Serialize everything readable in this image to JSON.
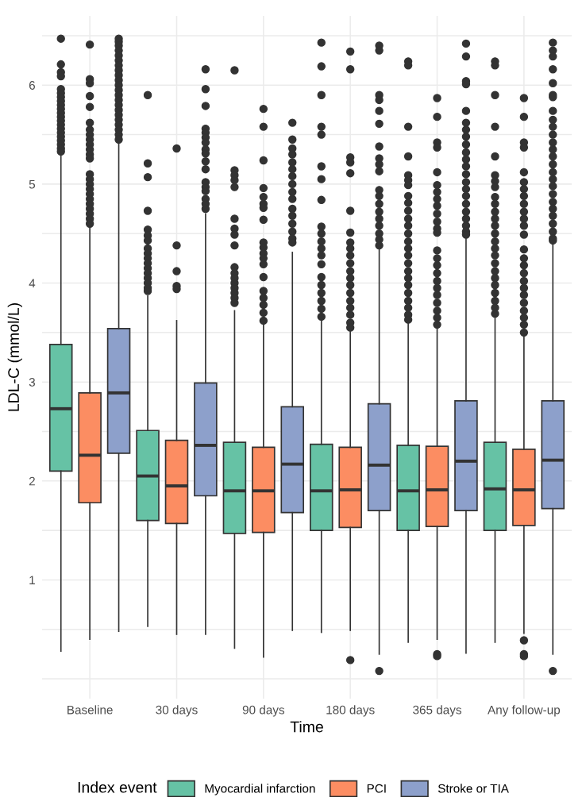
{
  "chart_data": {
    "type": "box",
    "xlabel": "Time",
    "ylabel": "LDL-C (mmol/L)",
    "legend_title": "Index event",
    "legend": "bottom",
    "grid": true,
    "categories": [
      "Baseline",
      "30 days",
      "90 days",
      "180 days",
      "365 days",
      "Any follow-up"
    ],
    "ylim": [
      -0.2,
      6.7
    ],
    "yticks": [
      {
        "value": 0,
        "label": null
      },
      {
        "value": 0.5,
        "label": null
      },
      1,
      {
        "value": 1.5,
        "label": null
      },
      2,
      {
        "value": 2.5,
        "label": null
      },
      3,
      {
        "value": 3.5,
        "label": null
      },
      4,
      {
        "value": 4.5,
        "label": null
      },
      5,
      {
        "value": 5.5,
        "label": null
      },
      6,
      {
        "value": 6.5,
        "label": null
      }
    ],
    "series": [
      {
        "name": "Myocardial infarction",
        "color": "#66c2a5",
        "boxes": [
          {
            "low": 0.28,
            "q1": 2.1,
            "median": 2.73,
            "q3": 3.38,
            "high": 5.29,
            "outliers": [
              6.47,
              6.21,
              6.13,
              6.09,
              5.96,
              5.92,
              5.88,
              5.84,
              5.8,
              5.76,
              5.72,
              5.68,
              5.64,
              5.6,
              5.56,
              5.52,
              5.48,
              5.44,
              5.4,
              5.36,
              5.33
            ]
          },
          {
            "low": 0.53,
            "q1": 1.6,
            "median": 2.05,
            "q3": 2.51,
            "high": 3.87,
            "outliers": [
              5.9,
              5.21,
              5.07,
              4.73,
              4.54,
              4.48,
              4.43,
              4.35,
              4.3,
              4.25,
              4.2,
              4.15,
              4.1,
              4.05,
              4.0,
              3.95,
              3.92
            ]
          },
          {
            "low": 0.31,
            "q1": 1.47,
            "median": 1.9,
            "q3": 2.39,
            "high": 3.72,
            "outliers": [
              6.15,
              5.14,
              5.09,
              5.04,
              4.97,
              4.65,
              4.55,
              4.49,
              4.38,
              4.16,
              4.1,
              4.05,
              4.0,
              3.95,
              3.9,
              3.85,
              3.8
            ]
          },
          {
            "low": 0.47,
            "q1": 1.5,
            "median": 1.9,
            "q3": 2.37,
            "high": 3.64,
            "outliers": [
              6.43,
              6.19,
              5.9,
              5.58,
              5.5,
              5.18,
              5.05,
              4.84,
              4.57,
              4.5,
              4.42,
              4.35,
              4.28,
              4.19,
              4.06,
              3.98,
              3.9,
              3.82,
              3.74,
              3.66
            ]
          },
          {
            "low": 0.37,
            "q1": 1.5,
            "median": 1.9,
            "q3": 2.36,
            "high": 3.62,
            "outliers": [
              6.24,
              6.2,
              5.58,
              5.28,
              5.09,
              5.04,
              4.99,
              4.88,
              4.81,
              4.73,
              4.65,
              4.58,
              4.5,
              4.42,
              4.35,
              4.28,
              4.2,
              4.12,
              4.05,
              3.98,
              3.9,
              3.82,
              3.75,
              3.68,
              3.63
            ]
          },
          {
            "low": 0.37,
            "q1": 1.5,
            "median": 1.92,
            "q3": 2.39,
            "high": 3.68,
            "outliers": [
              6.24,
              6.2,
              5.9,
              5.58,
              5.28,
              5.09,
              5.03,
              4.97,
              4.87,
              4.8,
              4.72,
              4.65,
              4.58,
              4.5,
              4.42,
              4.35,
              4.28,
              4.2,
              4.12,
              4.05,
              3.98,
              3.9,
              3.82,
              3.75,
              3.69
            ]
          }
        ]
      },
      {
        "name": "PCI",
        "color": "#fc8d62",
        "boxes": [
          {
            "low": 0.4,
            "q1": 1.78,
            "median": 2.26,
            "q3": 2.89,
            "high": 4.58,
            "outliers": [
              6.41,
              6.06,
              6.02,
              5.89,
              5.78,
              5.62,
              5.55,
              5.5,
              5.45,
              5.4,
              5.35,
              5.3,
              5.26,
              5.1,
              5.05,
              5.0,
              4.95,
              4.9,
              4.85,
              4.8,
              4.75,
              4.7,
              4.65,
              4.6
            ]
          },
          {
            "low": 0.45,
            "q1": 1.57,
            "median": 1.95,
            "q3": 2.41,
            "high": 3.62,
            "outliers": [
              5.36,
              4.38,
              4.12,
              3.97,
              3.94
            ]
          },
          {
            "low": 0.22,
            "q1": 1.48,
            "median": 1.9,
            "q3": 2.34,
            "high": 3.6,
            "outliers": [
              5.76,
              5.58,
              5.24,
              4.96,
              4.87,
              4.8,
              4.76,
              4.64,
              4.41,
              4.36,
              4.3,
              4.25,
              4.19,
              4.06,
              3.92,
              3.85,
              3.78,
              3.7,
              3.62
            ]
          },
          {
            "low": 0.49,
            "q1": 1.53,
            "median": 1.91,
            "q3": 2.34,
            "high": 3.52,
            "outliers": [
              6.34,
              6.16,
              5.27,
              5.22,
              5.11,
              4.73,
              4.51,
              4.41,
              4.35,
              4.28,
              4.2,
              4.12,
              4.05,
              3.98,
              3.9,
              3.82,
              3.75,
              3.68,
              3.6,
              3.55,
              0.19
            ]
          },
          {
            "low": 0.4,
            "q1": 1.54,
            "median": 1.91,
            "q3": 2.35,
            "high": 3.54,
            "outliers": [
              5.87,
              5.68,
              5.42,
              5.37,
              5.12,
              4.99,
              4.92,
              4.85,
              4.78,
              4.7,
              4.62,
              4.55,
              4.51,
              4.33,
              4.25,
              4.18,
              4.1,
              4.02,
              3.95,
              3.88,
              3.8,
              3.72,
              3.65,
              3.58,
              0.25,
              0.23
            ]
          },
          {
            "low": 0.46,
            "q1": 1.55,
            "median": 1.91,
            "q3": 2.32,
            "high": 3.47,
            "outliers": [
              5.87,
              5.68,
              5.42,
              5.37,
              5.12,
              5.02,
              4.95,
              4.88,
              4.8,
              4.72,
              4.65,
              4.58,
              4.49,
              4.34,
              4.25,
              4.18,
              4.1,
              4.02,
              3.95,
              3.88,
              3.8,
              3.72,
              3.65,
              3.58,
              3.5,
              0.39,
              0.25,
              0.23
            ]
          }
        ]
      },
      {
        "name": "Stroke or TIA",
        "color": "#8da0cb",
        "boxes": [
          {
            "low": 0.48,
            "q1": 2.28,
            "median": 2.89,
            "q3": 3.54,
            "high": 5.41,
            "outliers": [
              6.47,
              6.44,
              6.4,
              6.35,
              6.3,
              6.25,
              6.2,
              6.15,
              6.1,
              6.05,
              6.0,
              5.95,
              5.9,
              5.85,
              5.8,
              5.75,
              5.7,
              5.65,
              5.6,
              5.55,
              5.5,
              5.45
            ]
          },
          {
            "low": 0.45,
            "q1": 1.85,
            "median": 2.36,
            "q3": 2.99,
            "high": 4.7,
            "outliers": [
              6.16,
              5.96,
              5.79,
              5.56,
              5.52,
              5.47,
              5.42,
              5.35,
              5.31,
              5.23,
              5.15,
              5.02,
              4.97,
              4.93,
              4.85,
              4.8,
              4.75
            ]
          },
          {
            "low": 0.49,
            "q1": 1.68,
            "median": 2.17,
            "q3": 2.75,
            "high": 4.31,
            "outliers": [
              5.62,
              5.45,
              5.36,
              5.3,
              5.22,
              5.15,
              5.08,
              5.0,
              4.92,
              4.85,
              4.75,
              4.68,
              4.6,
              4.52,
              4.45,
              4.41
            ]
          },
          {
            "low": 0.25,
            "q1": 1.7,
            "median": 2.16,
            "q3": 2.78,
            "high": 4.37,
            "outliers": [
              6.4,
              6.35,
              5.9,
              5.85,
              5.74,
              5.61,
              5.38,
              5.26,
              5.2,
              5.13,
              4.94,
              4.88,
              4.8,
              4.72,
              4.65,
              4.58,
              4.5,
              4.44,
              4.38,
              0.08
            ]
          },
          {
            "low": 0.26,
            "q1": 1.7,
            "median": 2.2,
            "q3": 2.81,
            "high": 4.47,
            "outliers": [
              6.42,
              6.29,
              6.04,
              6.01,
              5.74,
              5.62,
              5.55,
              5.48,
              5.4,
              5.32,
              5.25,
              5.18,
              5.1,
              5.02,
              4.95,
              4.88,
              4.8,
              4.72,
              4.65,
              4.58,
              4.52,
              4.49
            ]
          },
          {
            "low": 0.25,
            "q1": 1.72,
            "median": 2.21,
            "q3": 2.81,
            "high": 4.42,
            "outliers": [
              6.43,
              6.35,
              6.29,
              6.16,
              6.02,
              5.9,
              5.88,
              5.74,
              5.65,
              5.58,
              5.5,
              5.42,
              5.35,
              5.28,
              5.2,
              5.12,
              5.05,
              4.98,
              4.9,
              4.82,
              4.75,
              4.68,
              4.6,
              4.52,
              4.45,
              4.43,
              0.08
            ]
          }
        ]
      }
    ]
  }
}
